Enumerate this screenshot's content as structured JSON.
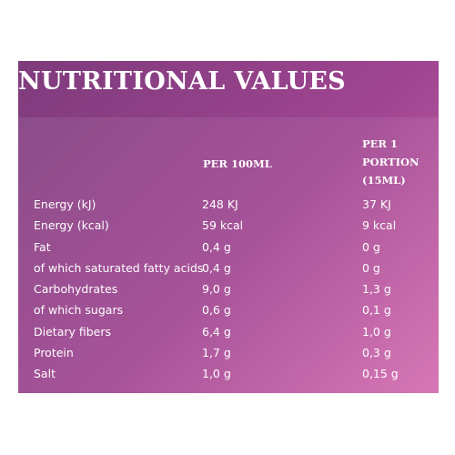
{
  "title": "NUTRITIONAL VALUES",
  "columns": {
    "per_100ml": "PER 100ML",
    "per_portion": [
      "PER 1",
      "PORTION",
      "(15ML)"
    ]
  },
  "rows": [
    {
      "label": "Energy (kJ)",
      "per_100ml": "248 KJ",
      "per_portion": "37 KJ"
    },
    {
      "label": "Energy (kcal)",
      "per_100ml": "59 kcal",
      "per_portion": "9 kcal"
    },
    {
      "label": "Fat",
      "per_100ml": "0,4 g",
      "per_portion": "0 g"
    },
    {
      "label": "of which saturated fatty acids",
      "per_100ml": "0,4 g",
      "per_portion": "0 g"
    },
    {
      "label": "Carbohydrates",
      "per_100ml": "9,0 g",
      "per_portion": "1,3 g"
    },
    {
      "label": "of which sugars",
      "per_100ml": "0,6 g",
      "per_portion": "0,1 g"
    },
    {
      "label": "Dietary fibers",
      "per_100ml": "6,4 g",
      "per_portion": "1,0 g"
    },
    {
      "label": "Protein",
      "per_100ml": "1,7 g",
      "per_portion": "0,3 g"
    },
    {
      "label": "Salt",
      "per_100ml": "1,0 g",
      "per_portion": "0,15 g"
    }
  ]
}
